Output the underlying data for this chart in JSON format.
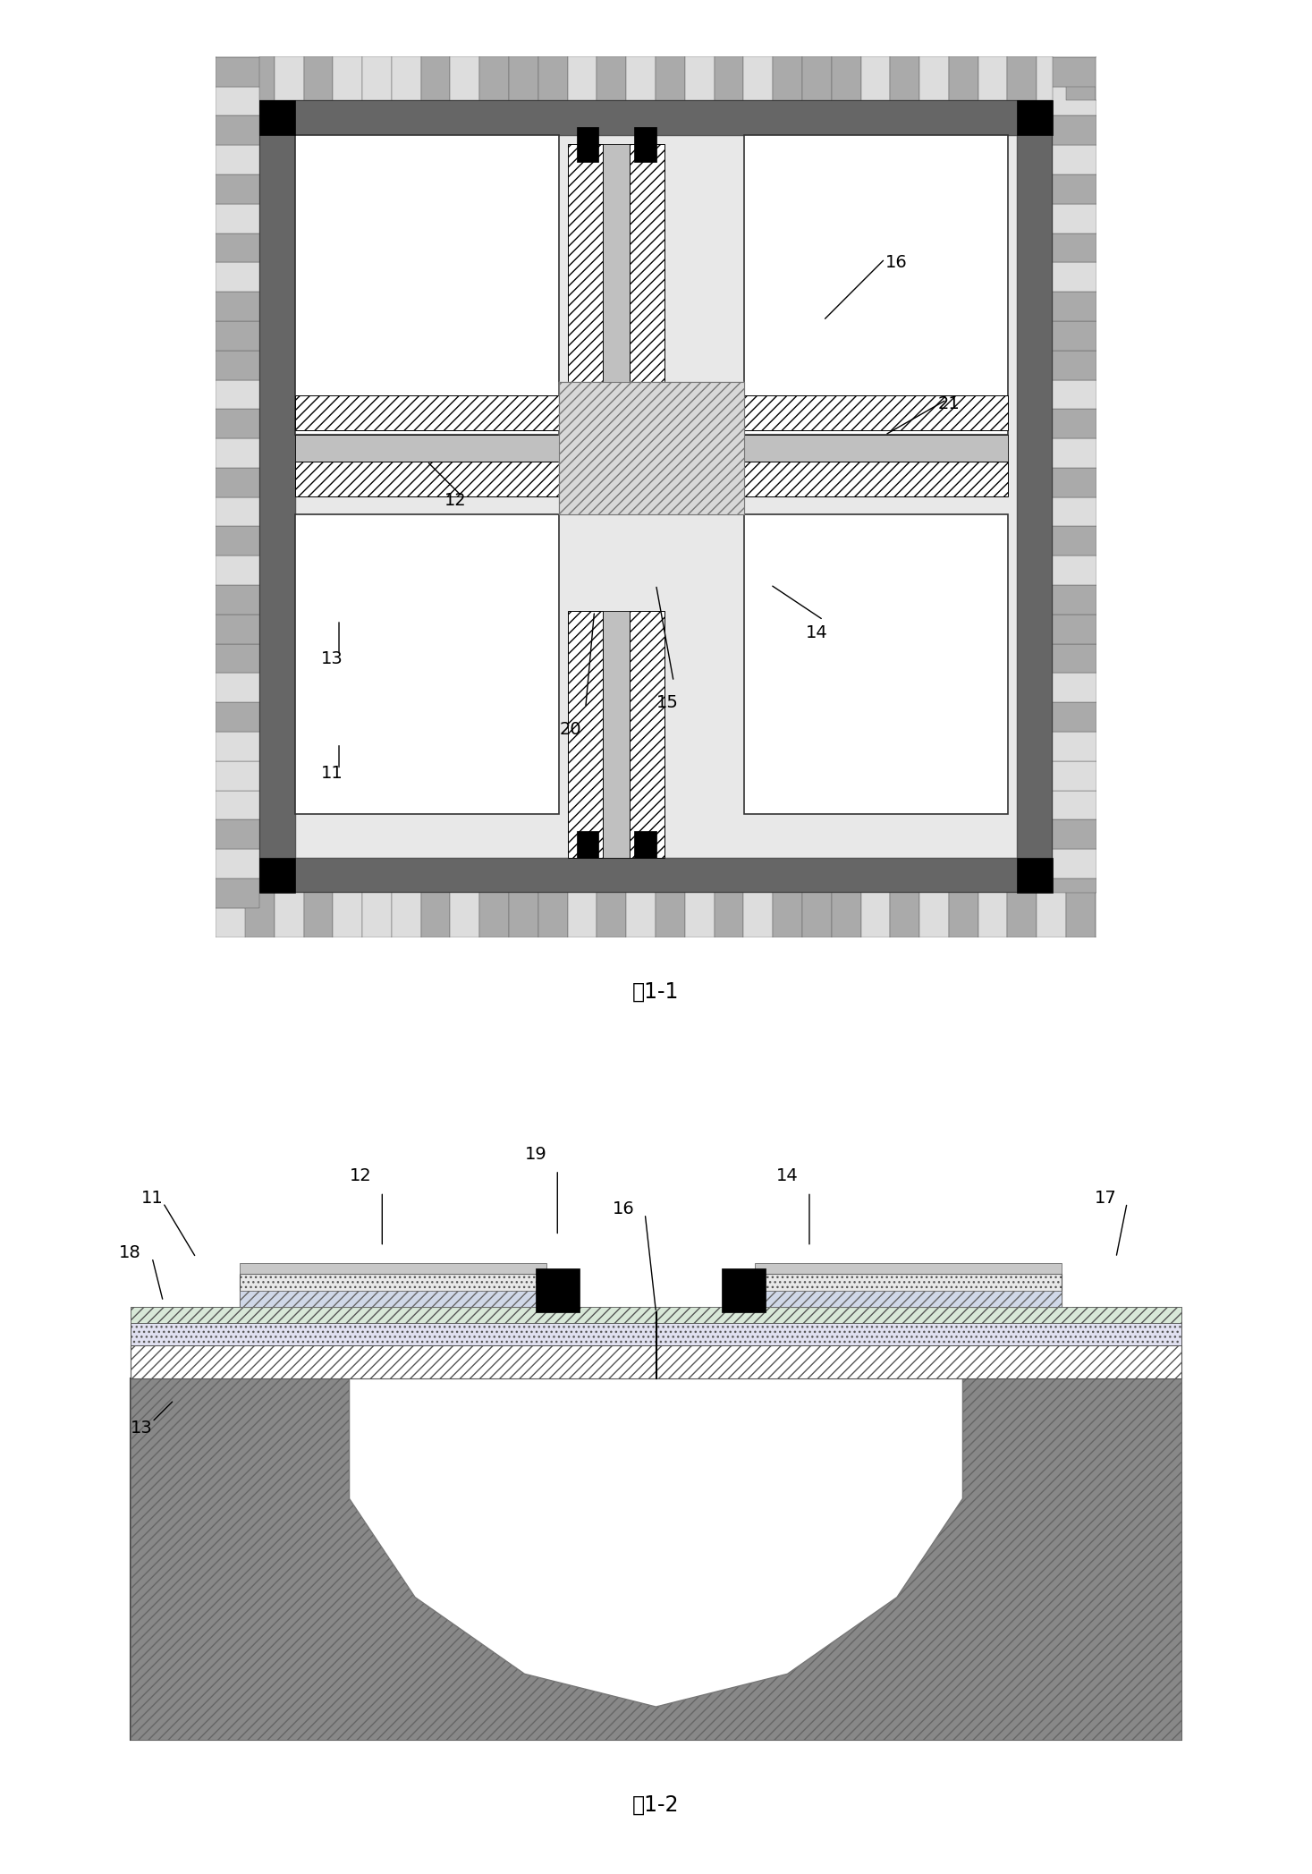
{
  "fig_width": 14.67,
  "fig_height": 20.95,
  "bg_color": "#ffffff",
  "fig1_label": "图1-1",
  "fig2_label": "图1-2"
}
